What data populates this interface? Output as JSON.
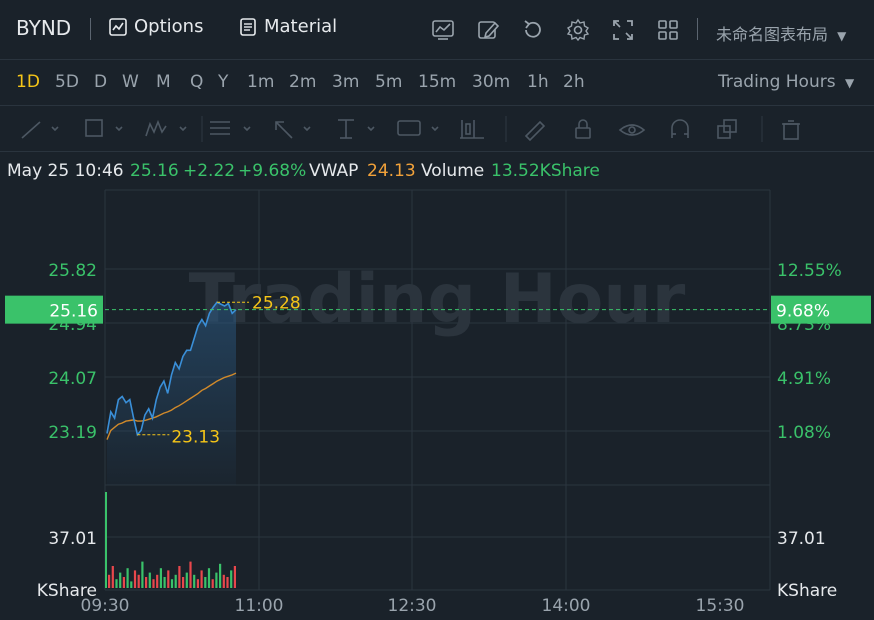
{
  "header": {
    "symbol": "BYND",
    "options_label": "Options",
    "material_label": "Material",
    "layout_label": "未命名图表布局"
  },
  "timeframes": [
    "1D",
    "5D",
    "D",
    "W",
    "M",
    "Q",
    "Y",
    "1m",
    "2m",
    "3m",
    "5m",
    "15m",
    "30m",
    "1h",
    "2h"
  ],
  "active_timeframe": "1D",
  "session_label": "Trading Hours",
  "info": {
    "datetime": "May 25 10:46",
    "price": "25.16",
    "change": "+2.22",
    "change_pct": "+9.68%",
    "vwap_label": "VWAP",
    "vwap": "24.13",
    "volume_label": "Volume",
    "volume": "13.52KShare"
  },
  "watermark": "Trading Hour",
  "colors": {
    "up": "#3ac26a",
    "down": "#e8474c",
    "price_line": "#3a8fd8",
    "vwap_line": "#d28a2a",
    "marker": "#f5c518"
  },
  "chart_data": {
    "type": "line",
    "x_ticks": [
      "09:30",
      "11:00",
      "12:30",
      "14:00",
      "15:30"
    ],
    "y_ticks_price": [
      "25.82",
      "24.94",
      "24.07",
      "23.19"
    ],
    "y_ticks_pct": [
      "12.55%",
      "8.73%",
      "4.91%",
      "1.08%"
    ],
    "ylim": [
      22.5,
      26.5
    ],
    "current_price_label": "25.16",
    "current_pct_label": "9.68%",
    "current_price": 25.16,
    "high_label": "25.28",
    "low_label": "23.13",
    "volume_tick": "37.01",
    "volume_unit": "KShare",
    "series": [
      {
        "name": "Price",
        "values": [
          23.15,
          23.5,
          23.4,
          23.7,
          23.75,
          23.65,
          23.7,
          23.4,
          23.13,
          23.2,
          23.45,
          23.55,
          23.4,
          23.7,
          23.9,
          24.0,
          23.8,
          24.1,
          24.3,
          24.2,
          24.4,
          24.5,
          24.5,
          24.7,
          24.9,
          25.0,
          24.9,
          25.1,
          25.2,
          25.28,
          25.25,
          25.22,
          25.26,
          25.1,
          25.16
        ]
      },
      {
        "name": "VWAP",
        "values": [
          23.05,
          23.2,
          23.25,
          23.3,
          23.32,
          23.35,
          23.36,
          23.37,
          23.35,
          23.35,
          23.36,
          23.38,
          23.4,
          23.42,
          23.45,
          23.48,
          23.5,
          23.53,
          23.57,
          23.6,
          23.64,
          23.68,
          23.72,
          23.76,
          23.8,
          23.85,
          23.88,
          23.92,
          23.96,
          24.0,
          24.03,
          24.06,
          24.08,
          24.1,
          24.13
        ]
      }
    ],
    "volume": [
      6,
      10,
      4,
      7,
      5,
      9,
      3,
      8,
      6,
      12,
      5,
      7,
      4,
      6,
      9,
      5,
      8,
      4,
      6,
      10,
      5,
      7,
      12,
      6,
      4,
      8,
      5,
      9,
      4,
      7,
      11,
      6,
      5,
      8,
      10
    ]
  }
}
